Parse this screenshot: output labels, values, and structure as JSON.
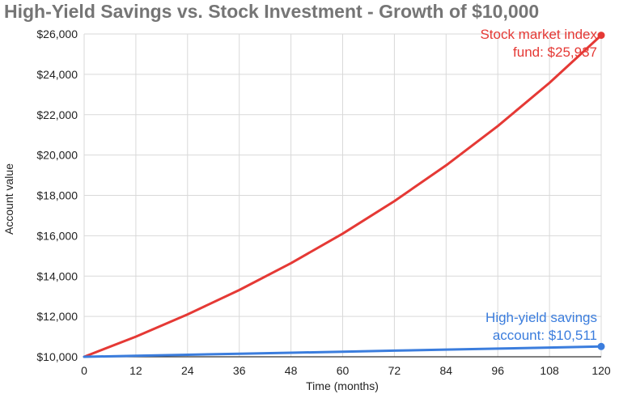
{
  "chart_data": {
    "type": "line",
    "title": "High-Yield Savings vs. Stock Investment - Growth of $10,000",
    "xlabel": "Time (months)",
    "ylabel": "Account value",
    "xlim": [
      0,
      120
    ],
    "ylim": [
      10000,
      26000
    ],
    "x_ticks": [
      0,
      12,
      24,
      36,
      48,
      60,
      72,
      84,
      96,
      108,
      120
    ],
    "y_ticks": [
      10000,
      12000,
      14000,
      16000,
      18000,
      20000,
      22000,
      24000,
      26000
    ],
    "y_tick_labels": [
      "$10,000",
      "$12,000",
      "$14,000",
      "$16,000",
      "$18,000",
      "$20,000",
      "$22,000",
      "$24,000",
      "$26,000"
    ],
    "grid": true,
    "x": [
      0,
      12,
      24,
      36,
      48,
      60,
      72,
      84,
      96,
      108,
      120
    ],
    "series": [
      {
        "color": "#e53935",
        "values": [
          10000,
          11000,
          12100,
          13310,
          14641,
          16105,
          17716,
          19487,
          21436,
          23579,
          25937
        ],
        "annotation": [
          "Stock market index",
          "fund: $25,937"
        ]
      },
      {
        "color": "#3b7ddd",
        "values": [
          10000,
          10050,
          10100,
          10151,
          10202,
          10253,
          10304,
          10355,
          10407,
          10459,
          10511
        ],
        "annotation": [
          "High-yield savings",
          "account: $10,511"
        ]
      }
    ]
  }
}
